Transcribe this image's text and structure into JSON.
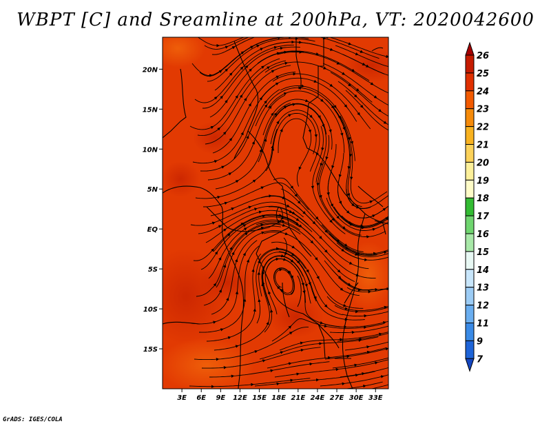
{
  "title": "WBPT [C] and Sreamline at 200hPa, VT: 2020042600",
  "footer": "GrADS: IGES/COLA",
  "map": {
    "lon_range": [
      0,
      35
    ],
    "lat_range": [
      -20,
      24
    ],
    "x_ticks": [
      "3E",
      "6E",
      "9E",
      "12E",
      "15E",
      "18E",
      "21E",
      "24E",
      "27E",
      "30E",
      "33E"
    ],
    "y_ticks": [
      "20N",
      "15N",
      "10N",
      "5N",
      "EQ",
      "5S",
      "10S",
      "15S"
    ],
    "field_range_c": [
      23,
      25
    ],
    "dominant_value_c": 24
  },
  "colorbar": {
    "labels": [
      "26",
      "25",
      "24",
      "23",
      "22",
      "21",
      "20",
      "19",
      "18",
      "17",
      "16",
      "15",
      "14",
      "13",
      "12",
      "11",
      "9",
      "7"
    ],
    "colors": [
      "#a50000",
      "#c51b00",
      "#e03000",
      "#f25a00",
      "#f58a0a",
      "#f8b220",
      "#fcd25a",
      "#fdf09a",
      "#fffcc8",
      "#33bb33",
      "#6fd56f",
      "#a8e8a8",
      "#e8f8f4",
      "#c8e6fb",
      "#9cccf5",
      "#6aaef0",
      "#3a8ae6",
      "#1e64d8",
      "#1446c0"
    ]
  }
}
